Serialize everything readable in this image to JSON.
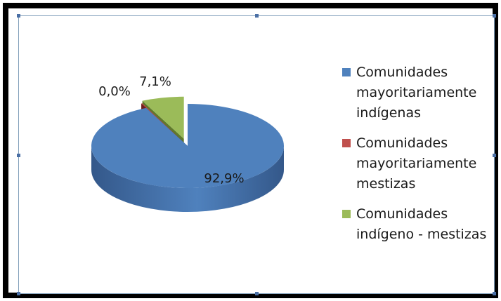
{
  "chart_data": {
    "type": "pie",
    "title": "",
    "slices": [
      {
        "name": "Comunidades mayoritariamente indígenas",
        "value": 92.9,
        "label": "92,9%",
        "color": "#4f81bd",
        "color_dark": "#34588a"
      },
      {
        "name": "Comunidades mayoritariamente mestizas",
        "value": 0.0,
        "label": "0,0%",
        "color": "#c0504d",
        "color_dark": "#6e1e1c"
      },
      {
        "name": "Comunidades indígeno - mestizas",
        "value": 7.1,
        "label": "7,1%",
        "color": "#9bbb59",
        "color_dark": "#5f7a2c"
      }
    ],
    "legend_position": "right",
    "style": "3d-exploded"
  },
  "legend": [
    {
      "lines": [
        "Comunidades",
        "mayoritariamente",
        "indígenas"
      ],
      "color": "#4f81bd"
    },
    {
      "lines": [
        "Comunidades",
        "mayoritariamente",
        "mestizas"
      ],
      "color": "#c0504d"
    },
    {
      "lines": [
        "Comunidades",
        "indígeno - mestizas"
      ],
      "color": "#9bbb59"
    }
  ]
}
